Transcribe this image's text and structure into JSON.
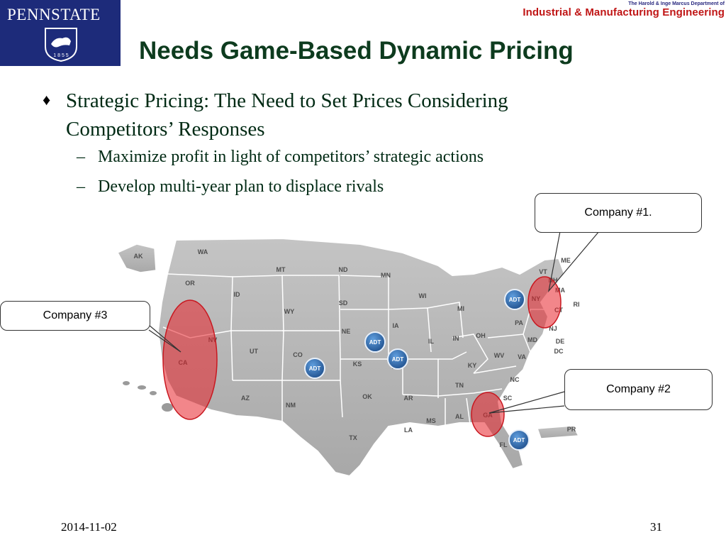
{
  "header": {
    "logo_text": "PENNSTATE",
    "logo_year": "1 8 5 5",
    "dept_line1": "The Harold & Inge Marcus Department of",
    "dept_line2": "Industrial & Manufacturing Engineering"
  },
  "slide": {
    "title": "Needs Game-Based Dynamic Pricing",
    "bullet_symbol": "♦",
    "bullet": "Strategic Pricing: The Need to Set Prices Considering Competitors’ Responses",
    "sub_dash": "–",
    "sub_bullets": [
      "Maximize profit in light of competitors’ strategic actions",
      "Develop multi-year plan to displace rivals"
    ]
  },
  "callouts": {
    "company1": "Company #1.",
    "company2": "Company #2",
    "company3": "Company #3"
  },
  "map": {
    "states": {
      "ak": "AK",
      "wa": "WA",
      "or": "OR",
      "ca": "CA",
      "nv": "NV",
      "id": "ID",
      "mt": "MT",
      "wy": "WY",
      "ut": "UT",
      "co": "CO",
      "az": "AZ",
      "nm": "NM",
      "nd": "ND",
      "sd": "SD",
      "ne": "NE",
      "ks": "KS",
      "ok": "OK",
      "tx": "TX",
      "mn": "MN",
      "ia": "IA",
      "mo": "MO",
      "ar": "AR",
      "la": "LA",
      "wi": "WI",
      "il": "IL",
      "mi": "MI",
      "in": "IN",
      "oh": "OH",
      "ky": "KY",
      "tn": "TN",
      "ms": "MS",
      "al": "AL",
      "ga": "GA",
      "fl": "FL",
      "sc": "SC",
      "nc": "NC",
      "va": "VA",
      "wv": "WV",
      "pa": "PA",
      "ny": "NY",
      "md": "MD",
      "de": "DE",
      "dc": "DC",
      "nj": "NJ",
      "ct": "CT",
      "ri": "RI",
      "ma": "MA",
      "vt": "VT",
      "nh": "NH",
      "me": "ME",
      "pr": "PR"
    },
    "badge_label": "ADT"
  },
  "footer": {
    "date": "2014-11-02",
    "page": "31"
  },
  "colors": {
    "logo_bg": "#1d2b7a",
    "title": "#0d3b1e",
    "dept_red": "#c01515",
    "highlight": "#e8232a",
    "badge": "#2f6fb3"
  }
}
